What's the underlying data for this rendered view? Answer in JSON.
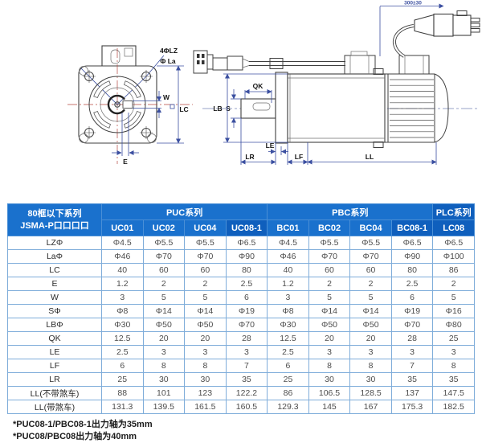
{
  "drawing": {
    "front": {
      "label_holes": "4ΦLZ",
      "label_flange": "Φ La",
      "label_w": "W",
      "label_lc": "LC",
      "label_e": "E"
    },
    "side": {
      "label_cable_length": "300±30",
      "label_qk": "QK",
      "label_lb": "LB",
      "label_s": "S",
      "label_le": "LE",
      "label_lr": "LR",
      "label_lf": "LF",
      "label_ll": "LL"
    }
  },
  "table": {
    "header": {
      "row_label_line1": "80框以下系列",
      "row_label_line2": "JSMA-P口口口口",
      "groups": [
        {
          "label": "PUC系列",
          "span": 4,
          "highlight": false
        },
        {
          "label": "PBC系列",
          "span": 4,
          "highlight": false
        },
        {
          "label": "PLC系列",
          "span": 1,
          "highlight": true
        }
      ],
      "columns": [
        {
          "label": "UC01",
          "highlight": false
        },
        {
          "label": "UC02",
          "highlight": false
        },
        {
          "label": "UC04",
          "highlight": false
        },
        {
          "label": "UC08-1",
          "highlight": true
        },
        {
          "label": "BC01",
          "highlight": false
        },
        {
          "label": "BC02",
          "highlight": false
        },
        {
          "label": "BC04",
          "highlight": false
        },
        {
          "label": "BC08-1",
          "highlight": true
        },
        {
          "label": "LC08",
          "highlight": true
        }
      ]
    },
    "rows": [
      {
        "label": "LZΦ",
        "values": [
          "Φ4.5",
          "Φ5.5",
          "Φ5.5",
          "Φ6.5",
          "Φ4.5",
          "Φ5.5",
          "Φ5.5",
          "Φ6.5",
          "Φ6.5"
        ]
      },
      {
        "label": "LaΦ",
        "values": [
          "Φ46",
          "Φ70",
          "Φ70",
          "Φ90",
          "Φ46",
          "Φ70",
          "Φ70",
          "Φ90",
          "Φ100"
        ]
      },
      {
        "label": "LC",
        "values": [
          "40",
          "60",
          "60",
          "80",
          "40",
          "60",
          "60",
          "80",
          "86"
        ]
      },
      {
        "label": "E",
        "values": [
          "1.2",
          "2",
          "2",
          "2.5",
          "1.2",
          "2",
          "2",
          "2.5",
          "2"
        ]
      },
      {
        "label": "W",
        "values": [
          "3",
          "5",
          "5",
          "6",
          "3",
          "5",
          "5",
          "6",
          "5"
        ]
      },
      {
        "label": "SΦ",
        "values": [
          "Φ8",
          "Φ14",
          "Φ14",
          "Φ19",
          "Φ8",
          "Φ14",
          "Φ14",
          "Φ19",
          "Φ16"
        ]
      },
      {
        "label": "LBΦ",
        "values": [
          "Φ30",
          "Φ50",
          "Φ50",
          "Φ70",
          "Φ30",
          "Φ50",
          "Φ50",
          "Φ70",
          "Φ80"
        ]
      },
      {
        "label": "QK",
        "values": [
          "12.5",
          "20",
          "20",
          "28",
          "12.5",
          "20",
          "20",
          "28",
          "25"
        ]
      },
      {
        "label": "LE",
        "values": [
          "2.5",
          "3",
          "3",
          "3",
          "2.5",
          "3",
          "3",
          "3",
          "3"
        ]
      },
      {
        "label": "LF",
        "values": [
          "6",
          "8",
          "8",
          "7",
          "6",
          "8",
          "8",
          "7",
          "8"
        ]
      },
      {
        "label": "LR",
        "values": [
          "25",
          "30",
          "30",
          "35",
          "25",
          "30",
          "30",
          "35",
          "35"
        ]
      },
      {
        "label": "LL(不带煞车)",
        "values": [
          "88",
          "101",
          "123",
          "122.2",
          "86",
          "106.5",
          "128.5",
          "137",
          "147.5"
        ]
      },
      {
        "label": "LL(带煞车)",
        "values": [
          "131.3",
          "139.5",
          "161.5",
          "160.5",
          "129.3",
          "145",
          "167",
          "175.3",
          "182.5"
        ]
      }
    ],
    "colors": {
      "header_bg": "#1a71cd",
      "header_bg_highlight": "#0f5fbd",
      "grid_border": "#7fadda",
      "dimension_line": "#3b4fa0",
      "centerline_red": "#b5483f"
    }
  },
  "footnotes": [
    "*PUC08-1/PBC08-1出力轴为35mm",
    "*PUC08/PBC08出力轴为40mm"
  ]
}
